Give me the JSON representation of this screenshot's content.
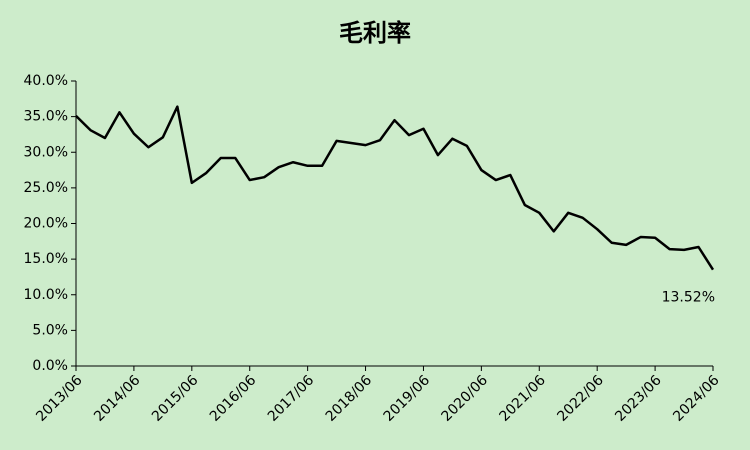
{
  "chart_data": {
    "type": "line",
    "title": "毛利率",
    "categories": [
      "2013/06",
      null,
      null,
      null,
      "2014/06",
      null,
      null,
      null,
      "2015/06",
      null,
      null,
      null,
      "2016/06",
      null,
      null,
      null,
      "2017/06",
      null,
      null,
      null,
      "2018/06",
      null,
      null,
      null,
      "2019/06",
      null,
      null,
      null,
      "2020/06",
      null,
      null,
      null,
      "2021/06",
      null,
      null,
      null,
      "2022/06",
      null,
      null,
      null,
      "2023/06",
      null,
      null,
      null,
      "2024/06"
    ],
    "values": [
      35.1,
      33.1,
      32.0,
      35.6,
      32.6,
      30.7,
      32.1,
      36.4,
      25.7,
      27.1,
      29.2,
      29.2,
      26.1,
      26.5,
      27.9,
      28.6,
      28.1,
      28.1,
      31.6,
      31.3,
      31.0,
      31.7,
      34.5,
      32.4,
      33.3,
      29.6,
      31.9,
      30.9,
      27.5,
      26.1,
      26.8,
      22.6,
      21.5,
      18.9,
      21.5,
      20.8,
      19.2,
      17.3,
      17.0,
      18.1,
      18.0,
      16.4,
      16.3,
      16.7,
      13.52
    ],
    "value_labels": [
      null,
      null,
      null,
      null,
      null,
      null,
      null,
      null,
      null,
      null,
      null,
      null,
      null,
      null,
      null,
      null,
      null,
      null,
      null,
      null,
      null,
      null,
      null,
      null,
      null,
      null,
      null,
      null,
      null,
      null,
      null,
      null,
      null,
      null,
      null,
      null,
      null,
      null,
      null,
      null,
      null,
      null,
      null,
      null,
      "13.52%"
    ],
    "color": "#000000",
    "ylim": [
      0,
      40
    ],
    "yticks": [
      {
        "value": 0,
        "label": "0.0%"
      },
      {
        "value": 5,
        "label": "5.0%"
      },
      {
        "value": 10,
        "label": "10.0%"
      },
      {
        "value": 15,
        "label": "15.0%"
      },
      {
        "value": 20,
        "label": "20.0%"
      },
      {
        "value": 25,
        "label": "25.0%"
      },
      {
        "value": 30,
        "label": "30.0%"
      },
      {
        "value": 35,
        "label": "35.0%"
      },
      {
        "value": 40,
        "label": "40.0%"
      }
    ],
    "grid": false
  }
}
